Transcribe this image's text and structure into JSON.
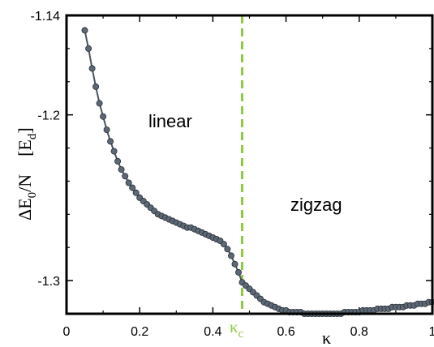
{
  "chart_data": {
    "type": "line",
    "title": "",
    "xlabel": "κ",
    "ylabel": "ΔE",
    "ylabel_sub": "0",
    "ylabel_suffix": "/N",
    "ylabel_unit_open": "[E",
    "ylabel_unit_sub": "d",
    "ylabel_unit_close": "]",
    "xlim": [
      0,
      1
    ],
    "ylim": [
      -1.32,
      -1.14
    ],
    "xticks": [
      0,
      0.2,
      0.4,
      0.6,
      0.8,
      1
    ],
    "xtick_labels": [
      "0",
      "0.2",
      "0.4",
      "0.6",
      "0.8",
      "1"
    ],
    "yticks": [
      -1.14,
      -1.2,
      -1.3
    ],
    "ytick_labels": [
      "-1.14",
      "-1.2",
      "-1.3"
    ],
    "annotations": {
      "linear": "linear",
      "zigzag": "zigzag",
      "kc_main": "κ",
      "kc_sub": "c"
    },
    "critical_x": 0.48,
    "colors": {
      "series": "#4a5560",
      "marker": "#5c6875",
      "marker_edge": "#2b3138",
      "critical_line": "#8ccc3f",
      "kc_label": "#8ccc3f",
      "axis": "#000000"
    },
    "series": [
      {
        "x": [
          0.05,
          0.06,
          0.07,
          0.08,
          0.09,
          0.1,
          0.11,
          0.12,
          0.13,
          0.14,
          0.15,
          0.16,
          0.17,
          0.18,
          0.19,
          0.2,
          0.21,
          0.22,
          0.23,
          0.24,
          0.25,
          0.26,
          0.27,
          0.28,
          0.29,
          0.3,
          0.31,
          0.32,
          0.33,
          0.34,
          0.35,
          0.36,
          0.37,
          0.38,
          0.39,
          0.4,
          0.41,
          0.42,
          0.43,
          0.44,
          0.45,
          0.46,
          0.47,
          0.48,
          0.49,
          0.5,
          0.51,
          0.52,
          0.53,
          0.54,
          0.55,
          0.56,
          0.57,
          0.58,
          0.59,
          0.6,
          0.61,
          0.62,
          0.63,
          0.64,
          0.65,
          0.66,
          0.67,
          0.68,
          0.69,
          0.7,
          0.71,
          0.72,
          0.73,
          0.74,
          0.75,
          0.76,
          0.77,
          0.78,
          0.79,
          0.8,
          0.81,
          0.82,
          0.83,
          0.84,
          0.85,
          0.86,
          0.87,
          0.88,
          0.89,
          0.9,
          0.91,
          0.92,
          0.93,
          0.94,
          0.95,
          0.96,
          0.97,
          0.98,
          0.99,
          1.0
        ],
        "y": [
          -1.149,
          -1.16,
          -1.172,
          -1.183,
          -1.193,
          -1.201,
          -1.209,
          -1.216,
          -1.222,
          -1.228,
          -1.233,
          -1.237,
          -1.241,
          -1.244,
          -1.247,
          -1.25,
          -1.252,
          -1.254,
          -1.256,
          -1.258,
          -1.26,
          -1.261,
          -1.262,
          -1.263,
          -1.264,
          -1.265,
          -1.266,
          -1.267,
          -1.268,
          -1.268,
          -1.269,
          -1.27,
          -1.271,
          -1.272,
          -1.273,
          -1.274,
          -1.275,
          -1.276,
          -1.278,
          -1.281,
          -1.285,
          -1.29,
          -1.295,
          -1.301,
          -1.303,
          -1.305,
          -1.307,
          -1.309,
          -1.311,
          -1.313,
          -1.314,
          -1.315,
          -1.316,
          -1.317,
          -1.318,
          -1.318,
          -1.319,
          -1.319,
          -1.319,
          -1.319,
          -1.32,
          -1.32,
          -1.32,
          -1.32,
          -1.32,
          -1.32,
          -1.32,
          -1.32,
          -1.32,
          -1.32,
          -1.32,
          -1.319,
          -1.319,
          -1.319,
          -1.319,
          -1.319,
          -1.318,
          -1.318,
          -1.318,
          -1.318,
          -1.317,
          -1.317,
          -1.317,
          -1.317,
          -1.316,
          -1.316,
          -1.316,
          -1.316,
          -1.315,
          -1.315,
          -1.315,
          -1.314,
          -1.314,
          -1.314,
          -1.313,
          -1.313
        ]
      }
    ]
  }
}
